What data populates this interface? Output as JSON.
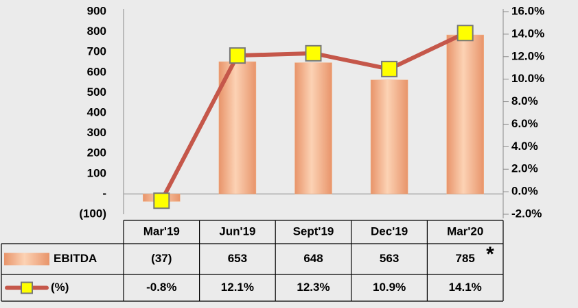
{
  "chart_data": {
    "type": "bar",
    "categories": [
      "Mar'19",
      "Jun'19",
      "Sept'19",
      "Dec'19",
      "Mar'20"
    ],
    "series": [
      {
        "name": "EBITDA",
        "type": "bar",
        "color": "#f4b183",
        "values": [
          -37,
          653,
          648,
          563,
          785
        ],
        "value_labels": [
          "(37)",
          "653",
          "648",
          "563",
          "785"
        ]
      },
      {
        "name": "(%)",
        "type": "line",
        "axis": "y2",
        "color": "#c5574a",
        "marker_color": "#ffff00",
        "values": [
          -0.8,
          12.1,
          12.3,
          10.9,
          14.1
        ],
        "value_labels": [
          "-0.8%",
          "12.1%",
          "12.3%",
          "10.9%",
          "14.1%"
        ]
      }
    ],
    "ylim": [
      -100,
      900
    ],
    "yticks": [
      {
        "value": -100,
        "label": "(100)"
      },
      {
        "value": 0,
        "label": "-"
      },
      100,
      200,
      300,
      400,
      500,
      600,
      700,
      800,
      900
    ],
    "y2lim": [
      -2,
      16
    ],
    "y2ticks": [
      {
        "value": -2,
        "label": "-2.0%"
      },
      {
        "value": 0,
        "label": "0.0%"
      },
      {
        "value": 2,
        "label": "2.0%"
      },
      {
        "value": 4,
        "label": "4.0%"
      },
      {
        "value": 6,
        "label": "6.0%"
      },
      {
        "value": 8,
        "label": "8.0%"
      },
      {
        "value": 10,
        "label": "10.0%"
      },
      {
        "value": 12,
        "label": "12.0%"
      },
      {
        "value": 14,
        "label": "14.0%"
      },
      {
        "value": 16,
        "label": "16.0%"
      }
    ],
    "annotation": "*",
    "grid": false
  }
}
